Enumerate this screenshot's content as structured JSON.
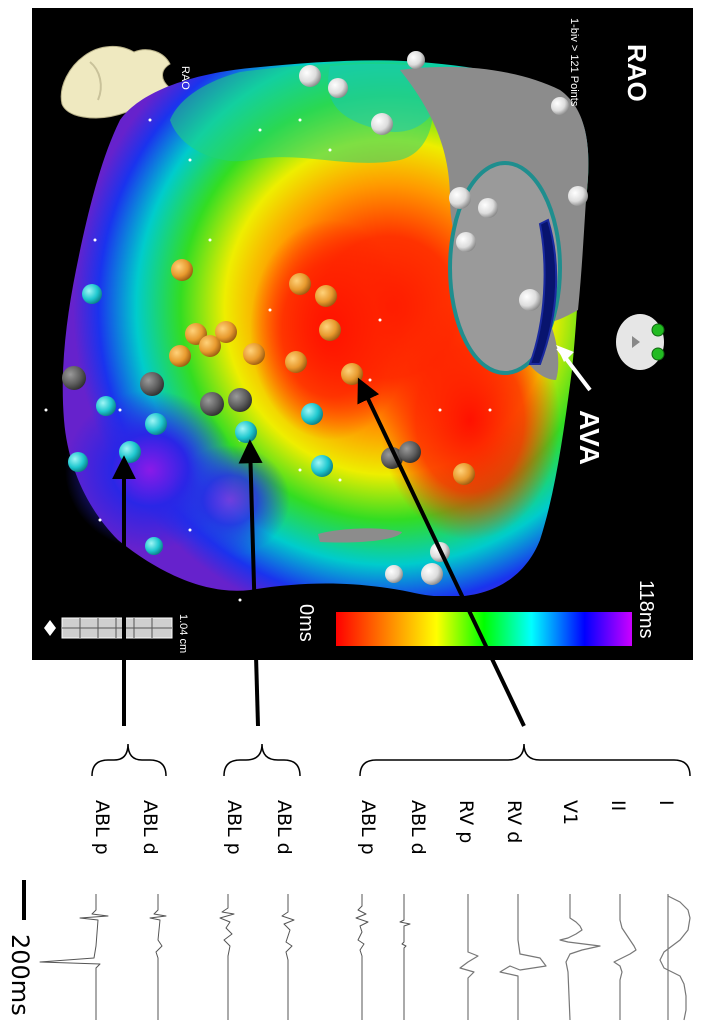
{
  "map": {
    "view": "RAO",
    "points_info": "1-biv > 121 Points",
    "heart_view_label": "RAO",
    "annotation": "AVA",
    "scale_distance": "1.04 cm",
    "colors": {
      "background": "#000000",
      "annotation_outline": "#1f8e8e",
      "vessel": "#08146e"
    }
  },
  "colorbar": {
    "min_label": "0ms",
    "max_label": "118ms",
    "stops": [
      "#ff0000",
      "#ff7f00",
      "#ffff00",
      "#00ff00",
      "#00ffff",
      "#0000ff",
      "#cc00ff"
    ]
  },
  "channels": {
    "group1": [
      "I",
      "II",
      "V1",
      "RV d",
      "RV p",
      "ABL d",
      "ABL p"
    ],
    "group2": [
      "ABL d",
      "ABL p"
    ],
    "group3": [
      "ABL d",
      "ABL p"
    ]
  },
  "scale_bar": {
    "label": "200ms"
  }
}
